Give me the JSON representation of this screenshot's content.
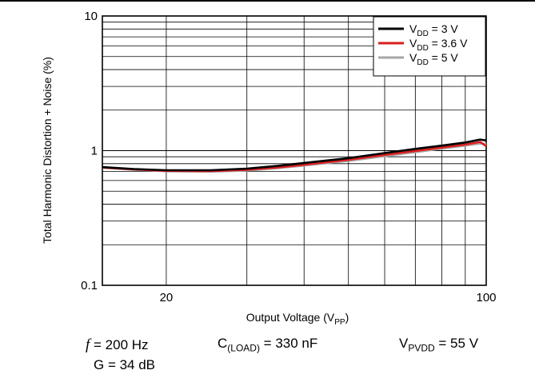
{
  "chart_data": {
    "type": "line",
    "xscale": "log",
    "yscale": "log",
    "xlim": [
      14.5,
      100
    ],
    "ylim": [
      0.1,
      10
    ],
    "xlabel": {
      "main": "Output Voltage (V",
      "sub": "PP",
      "end": ")"
    },
    "ylabel": "Total Harmonic Distortion + Noise (%)",
    "x_tick_labels": [
      {
        "value": 20,
        "label": "20"
      },
      {
        "value": 100,
        "label": "100"
      }
    ],
    "y_tick_labels": [
      {
        "value": 0.1,
        "label": "0.1"
      },
      {
        "value": 1,
        "label": "1"
      },
      {
        "value": 10,
        "label": "10"
      }
    ],
    "grid": true,
    "legend_position": "top-right",
    "series": [
      {
        "name": {
          "main": "V",
          "sub": "DD",
          "rest": " = 3 V"
        },
        "color": "#000000",
        "x": [
          14.5,
          17,
          20,
          25,
          30,
          35,
          40,
          50,
          60,
          70,
          80,
          90,
          97,
          100
        ],
        "y": [
          0.755,
          0.73,
          0.715,
          0.715,
          0.735,
          0.77,
          0.81,
          0.88,
          0.96,
          1.03,
          1.09,
          1.15,
          1.21,
          1.19
        ]
      },
      {
        "name": {
          "main": "V",
          "sub": "DD",
          "rest": " = 3.6 V"
        },
        "color": "#d81e1e",
        "x": [
          14.5,
          17,
          20,
          25,
          30,
          35,
          40,
          50,
          60,
          70,
          80,
          90,
          97,
          100
        ],
        "y": [
          0.75,
          0.725,
          0.708,
          0.705,
          0.72,
          0.75,
          0.785,
          0.855,
          0.93,
          0.995,
          1.055,
          1.11,
          1.16,
          1.08
        ]
      },
      {
        "name": {
          "main": "V",
          "sub": "DD",
          "rest": " = 5 V"
        },
        "color": "#a6a6a6",
        "x": [
          14.5,
          17,
          20,
          25,
          30,
          35,
          40,
          50,
          60,
          70,
          80,
          90,
          97,
          100
        ],
        "y": [
          0.745,
          0.72,
          0.703,
          0.698,
          0.712,
          0.74,
          0.775,
          0.84,
          0.91,
          0.975,
          1.035,
          1.09,
          1.13,
          1.12
        ]
      }
    ]
  },
  "conditions": {
    "freq": {
      "symbol": "f",
      "text": " = 200 Hz"
    },
    "gain": "G = 34 dB",
    "load": {
      "main": "C",
      "sub": "(LOAD)",
      "rest": " = 330 nF"
    },
    "pvdd": {
      "main": "V",
      "sub": "PVDD",
      "rest": " = 55 V"
    }
  }
}
